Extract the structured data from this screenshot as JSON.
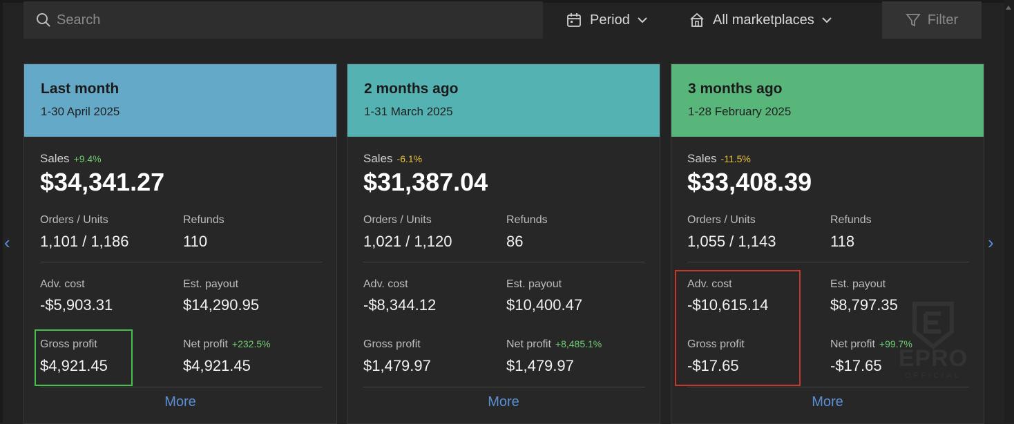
{
  "toolbar": {
    "search_placeholder": "Search",
    "period_label": "Period",
    "marketplace_label": "All marketplaces",
    "filter_label": "Filter"
  },
  "nav": {
    "prev": "‹",
    "next": "›"
  },
  "cards": [
    {
      "title": "Last month",
      "range": "1-30 April 2025",
      "header_color": "#64a9c8",
      "sales_label": "Sales",
      "sales_change": "+9.4%",
      "sales_value": "$34,341.27",
      "orders_label": "Orders / Units",
      "orders_value": "1,101 / 1,186",
      "refunds_label": "Refunds",
      "refunds_value": "110",
      "adv_label": "Adv. cost",
      "adv_value": "-$5,903.31",
      "payout_label": "Est. payout",
      "payout_value": "$14,290.95",
      "gross_label": "Gross profit",
      "gross_value": "$4,921.45",
      "net_label": "Net profit",
      "net_change": "+232.5%",
      "net_value": "$4,921.45",
      "more_label": "More"
    },
    {
      "title": "2 months ago",
      "range": "1-31 March 2025",
      "header_color": "#55b2b2",
      "sales_label": "Sales",
      "sales_change": "-6.1%",
      "sales_value": "$31,387.04",
      "orders_label": "Orders / Units",
      "orders_value": "1,021 / 1,120",
      "refunds_label": "Refunds",
      "refunds_value": "86",
      "adv_label": "Adv. cost",
      "adv_value": "-$8,344.12",
      "payout_label": "Est. payout",
      "payout_value": "$10,400.47",
      "gross_label": "Gross profit",
      "gross_value": "$1,479.97",
      "net_label": "Net profit",
      "net_change": "+8,485.1%",
      "net_value": "$1,479.97",
      "more_label": "More"
    },
    {
      "title": "3 months ago",
      "range": "1-28 February 2025",
      "header_color": "#58b67b",
      "sales_label": "Sales",
      "sales_change": "-11.5%",
      "sales_value": "$33,408.39",
      "orders_label": "Orders / Units",
      "orders_value": "1,055 / 1,143",
      "refunds_label": "Refunds",
      "refunds_value": "118",
      "adv_label": "Adv. cost",
      "adv_value": "-$10,615.14",
      "payout_label": "Est. payout",
      "payout_value": "$8,797.35",
      "gross_label": "Gross profit",
      "gross_value": "-$17.65",
      "net_label": "Net profit",
      "net_change": "+99.7%",
      "net_value": "-$17.65",
      "more_label": "More"
    }
  ],
  "colors": {
    "positive_change": "#6fcf70",
    "negative_change": "#e8c33a",
    "link": "#5a8fd6",
    "highlight_green": "#45c04a",
    "highlight_red": "#c43a2a"
  },
  "watermark": {
    "brand": "EPRO",
    "sub": "OFFICIAL"
  }
}
